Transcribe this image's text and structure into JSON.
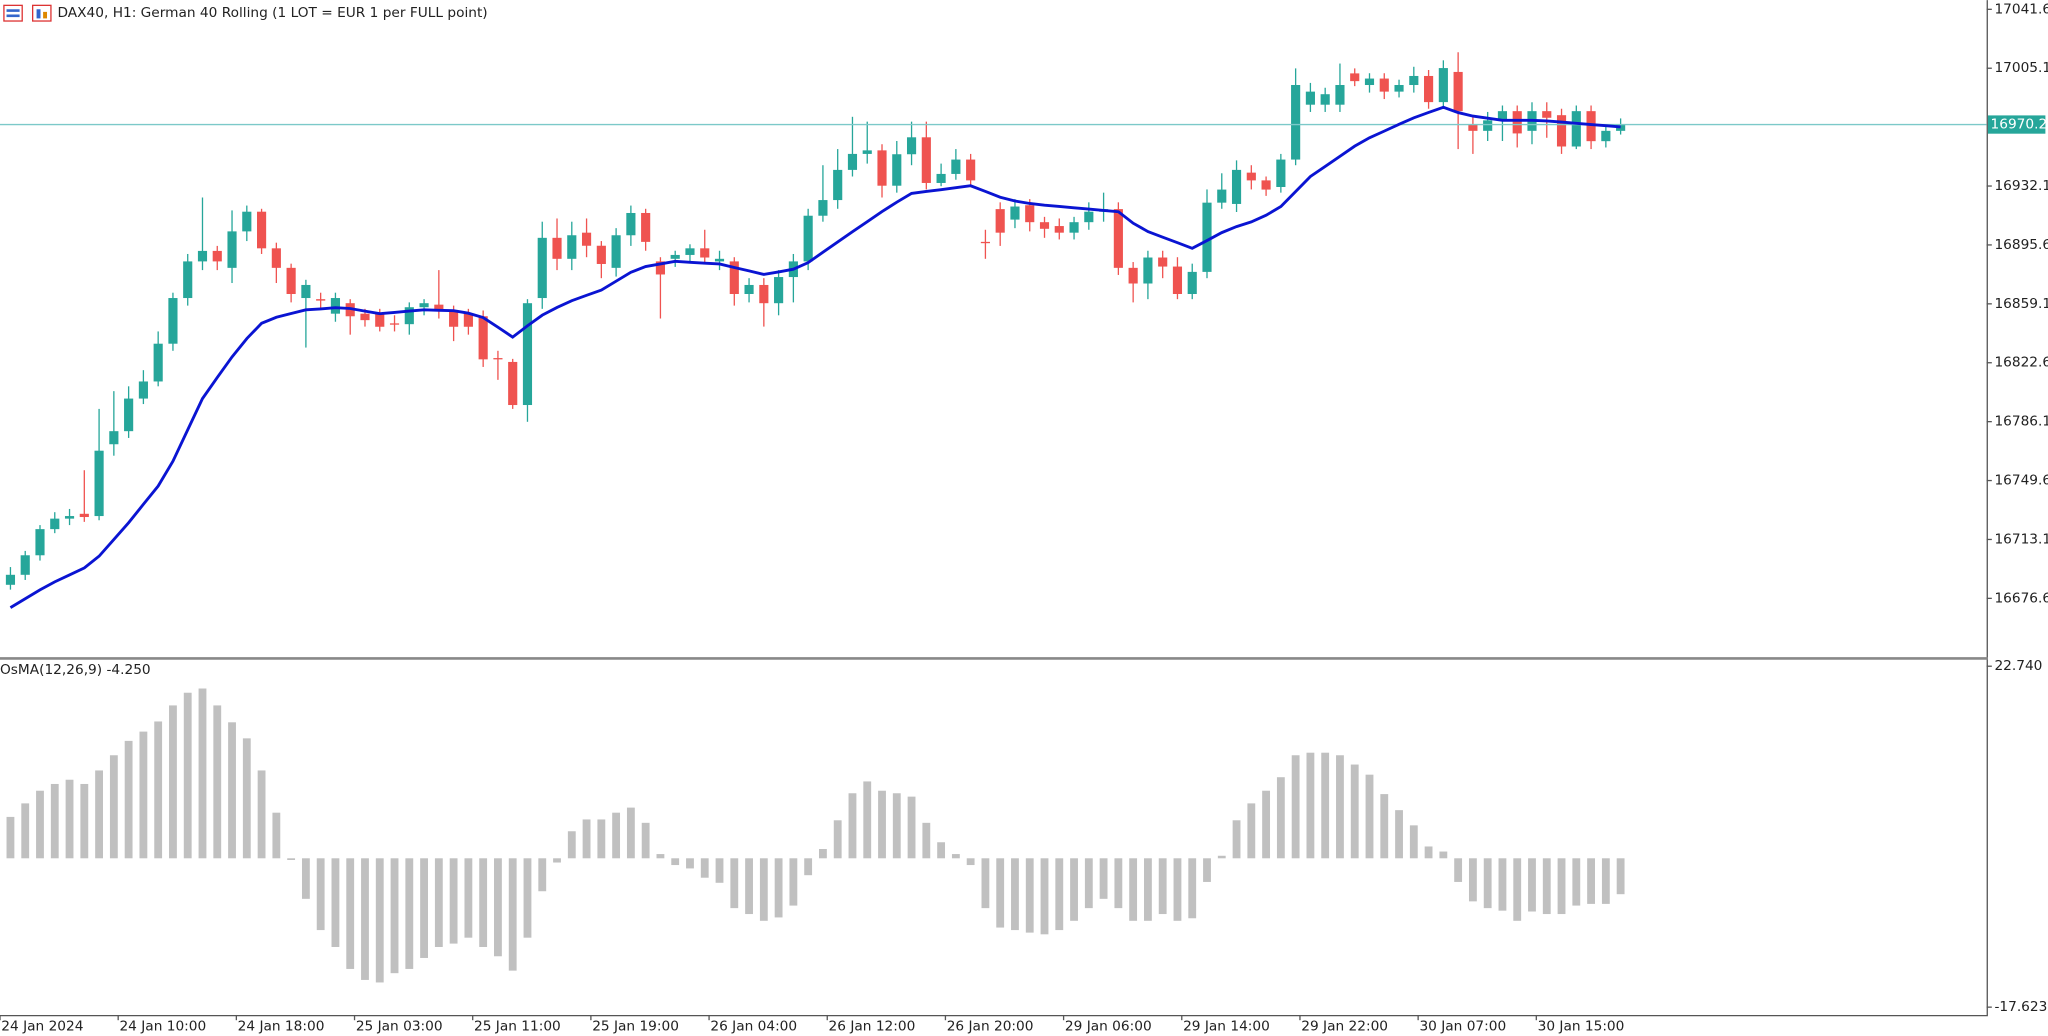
{
  "chart_data": [
    {
      "type": "candlestick",
      "title": "DAX40, H1:  German 40 Rolling (1 LOT = EUR 1 per FULL point)",
      "categories": [
        "24 Jan 2024",
        null,
        null,
        null,
        null,
        null,
        null,
        null,
        "24 Jan 10:00",
        null,
        null,
        null,
        null,
        null,
        null,
        null,
        "24 Jan 18:00",
        null,
        null,
        null,
        null,
        null,
        null,
        null,
        "25 Jan 03:00",
        null,
        null,
        null,
        null,
        null,
        null,
        null,
        "25 Jan 11:00",
        null,
        null,
        null,
        null,
        null,
        null,
        null,
        "25 Jan 19:00",
        null,
        null,
        null,
        null,
        null,
        null,
        null,
        "26 Jan 04:00",
        null,
        null,
        null,
        null,
        null,
        null,
        null,
        "26 Jan 12:00",
        null,
        null,
        null,
        null,
        null,
        null,
        null,
        "26 Jan 20:00",
        null,
        null,
        null,
        null,
        null,
        null,
        null,
        "29 Jan 06:00",
        null,
        null,
        null,
        null,
        null,
        null,
        null,
        "29 Jan 14:00",
        null,
        null,
        null,
        null,
        null,
        null,
        null,
        "29 Jan 22:00",
        null,
        null,
        null,
        null,
        null,
        null,
        null,
        "30 Jan 07:00",
        null,
        null,
        null,
        null,
        null,
        null,
        null,
        "30 Jan 15:00",
        null,
        null,
        null,
        null,
        null
      ],
      "open": [
        16685.0,
        16691.2,
        16703.3,
        16719.5,
        16726.0,
        16729.0,
        16727.6,
        16772.1,
        16780.2,
        16800.4,
        16811.0,
        16834.4,
        16862.7,
        16885.4,
        16891.9,
        16881.4,
        16904.0,
        16916.2,
        16893.5,
        16881.4,
        16862.7,
        16862.0,
        16853.0,
        16859.5,
        16853.0,
        16853.0,
        16847.0,
        16846.5,
        16857.0,
        16858.6,
        16854.6,
        16853.0,
        16851.4,
        16825.5,
        16823.1,
        16796.4,
        16862.7,
        16900.0,
        16887.0,
        16903.2,
        16895.1,
        16881.4,
        16901.6,
        16915.4,
        16885.4,
        16887.0,
        16889.4,
        16893.5,
        16885.4,
        16885.4,
        16865.2,
        16870.8,
        16859.5,
        16875.7,
        16885.4,
        16913.7,
        16923.4,
        16942.1,
        16952.0,
        16954.2,
        16932.3,
        16951.8,
        16962.3,
        16934.0,
        16939.6,
        16948.5,
        16897.5,
        16917.8,
        16911.3,
        16920.2,
        16909.7,
        16907.3,
        16903.2,
        16909.7,
        16916.2,
        16917.8,
        16881.4,
        16871.7,
        16887.8,
        16882.2,
        16865.2,
        16878.9,
        16921.8,
        16921.0,
        16940.4,
        16935.6,
        16931.5,
        16948.5,
        16982.5,
        16982.5,
        16982.5,
        17001.9,
        16994.7,
        16998.7,
        16990.6,
        16994.7,
        17000.3,
        16984.1,
        17002.8,
        16970.4,
        16966.3,
        16972.8,
        16978.5,
        16966.3,
        16978.5,
        16976.0,
        16956.6,
        16978.5,
        16959.9,
        16966.3
      ],
      "high": [
        16696,
        16706,
        16722,
        16730,
        16732,
        16756,
        16794,
        16805,
        16808,
        16818,
        16842,
        16866,
        16890,
        16925,
        16895,
        16917,
        16920,
        16918,
        16897,
        16884,
        16874,
        16866,
        16866,
        16862,
        16856,
        16856,
        16852,
        16860,
        16862,
        16880,
        16858,
        16856,
        16855,
        16830,
        16825,
        16862,
        16910,
        16912,
        16910,
        16912,
        16898,
        16906,
        16920,
        16918,
        16888,
        16892,
        16896,
        16905,
        16892,
        16888,
        16875,
        16875,
        16880,
        16890,
        16918,
        16945,
        16955,
        16975,
        16972,
        16958,
        16960,
        16972,
        16972,
        16946,
        16955,
        16952,
        16905,
        16922,
        16924,
        16924,
        16913,
        16912,
        16913,
        16922,
        16928,
        16922,
        16885,
        16892,
        16892,
        16888,
        16884,
        16930,
        16940,
        16948,
        16945,
        16938,
        16952,
        17005,
        16996,
        16993,
        17008,
        17005,
        17002,
        17002,
        16998,
        17006,
        17004,
        17010,
        17015,
        16976,
        16978,
        16982,
        16982,
        16984,
        16984,
        16980,
        16982,
        16982,
        16970,
        16974
      ],
      "low": [
        16682,
        16688,
        16700,
        16717,
        16722,
        16724,
        16725,
        16765,
        16776,
        16797,
        16808,
        16830,
        16858,
        16880,
        16880,
        16872,
        16898,
        16890,
        16872,
        16860,
        16832,
        16856,
        16848,
        16840,
        16845,
        16842,
        16842,
        16840,
        16852,
        16850,
        16836,
        16840,
        16820,
        16812,
        16794,
        16786,
        16856,
        16880,
        16880,
        16888,
        16875,
        16876,
        16895,
        16892,
        16850,
        16882,
        16885,
        16884,
        16880,
        16858,
        16860,
        16845,
        16852,
        16860,
        16880,
        16910,
        16918,
        16938,
        16946,
        16925,
        16928,
        16945,
        16930,
        16932,
        16936,
        16932,
        16887,
        16895,
        16906,
        16904,
        16900,
        16899,
        16899,
        16905,
        16910,
        16877,
        16860,
        16862,
        16875,
        16862,
        16862,
        16875,
        16918,
        16916,
        16930,
        16926,
        16928,
        16945,
        16978,
        16978,
        16978,
        16994,
        16990,
        16986,
        16987,
        16990,
        16980,
        16980,
        16955,
        16952,
        16960,
        16960,
        16956,
        16958,
        16962,
        16952,
        16955,
        16955,
        16956,
        16964
      ],
      "close": [
        16691.2,
        16703.3,
        16719.5,
        16726.0,
        16727.6,
        16727.0,
        16768.1,
        16780.2,
        16800.4,
        16811.0,
        16834.4,
        16862.7,
        16885.4,
        16891.9,
        16885.4,
        16904.0,
        16916.2,
        16893.5,
        16881.4,
        16865.2,
        16870.8,
        16861.1,
        16862.7,
        16851.4,
        16849.0,
        16844.9,
        16846.5,
        16857.0,
        16859.5,
        16855.4,
        16844.9,
        16844.9,
        16824.7,
        16824.7,
        16796.4,
        16859.5,
        16900.0,
        16887.0,
        16901.6,
        16895.1,
        16883.8,
        16901.6,
        16915.4,
        16897.5,
        16877.3,
        16889.4,
        16893.5,
        16887.8,
        16887.0,
        16865.2,
        16870.8,
        16859.5,
        16875.7,
        16885.4,
        16913.7,
        16923.4,
        16942.1,
        16952.0,
        16954.2,
        16932.3,
        16951.8,
        16962.3,
        16934.0,
        16939.6,
        16948.5,
        16935.6,
        16896.7,
        16903.2,
        16919.4,
        16909.7,
        16905.6,
        16903.2,
        16909.7,
        16916.2,
        16917.8,
        16881.4,
        16871.7,
        16887.8,
        16882.2,
        16865.2,
        16878.9,
        16921.8,
        16929.9,
        16942.1,
        16935.6,
        16929.9,
        16948.5,
        16994.7,
        16990.6,
        16989.0,
        16994.7,
        16997.1,
        16998.7,
        16990.6,
        16994.7,
        17000.3,
        16984.1,
        17005.2,
        16978.5,
        16966.3,
        16972.8,
        16978.5,
        16964.7,
        16978.5,
        16974.4,
        16956.6,
        16978.5,
        16959.9,
        16966.3,
        16970.2
      ],
      "up_color": "#26a69a",
      "down_color": "#ef5350",
      "ma": {
        "color": "#0a14d2",
        "values": [
          16670.9,
          16676.4,
          16681.9,
          16686.8,
          16691.1,
          16695.5,
          16702.8,
          16713.1,
          16723.5,
          16734.9,
          16746.2,
          16761.6,
          16781.0,
          16800.4,
          16813.4,
          16826.3,
          16837.6,
          16847.1,
          16850.8,
          16853.1,
          16855.4,
          16856.0,
          16856.7,
          16856.2,
          16854.6,
          16853.0,
          16853.8,
          16854.6,
          16855.4,
          16855.1,
          16854.8,
          16853.3,
          16850.6,
          16844.6,
          16838.5,
          16845.5,
          16852.1,
          16856.9,
          16861.1,
          16864.4,
          16867.6,
          16873.1,
          16878.6,
          16882.2,
          16883.8,
          16885.4,
          16884.9,
          16884.3,
          16883.8,
          16881.6,
          16879.5,
          16877.3,
          16878.9,
          16880.6,
          16884.6,
          16891.1,
          16897.5,
          16903.8,
          16910.0,
          16916.3,
          16922.1,
          16927.5,
          16928.7,
          16929.9,
          16931.1,
          16932.3,
          16928.7,
          16925.2,
          16922.8,
          16921.3,
          16920.2,
          16919.4,
          16918.6,
          16917.8,
          16917.0,
          16916.2,
          16909.1,
          16903.9,
          16900.4,
          16897.0,
          16893.5,
          16898.3,
          16903.2,
          16907.0,
          16909.9,
          16914.0,
          16919.4,
          16928.7,
          16938.0,
          16944.3,
          16950.5,
          16956.8,
          16962.0,
          16966.1,
          16970.3,
          16974.4,
          16977.7,
          16980.9,
          16977.6,
          16975.4,
          16974.1,
          16972.8,
          16972.8,
          16972.8,
          16972.4,
          16971.7,
          16971.0,
          16970.2,
          16969.5,
          16968.7
        ]
      },
      "last_price": 16970.2,
      "last_price_color": "#26a69a",
      "ylim": [
        16640.2,
        17047.3
      ],
      "yticks": [
        17041.6,
        17005.1,
        16932.1,
        16895.6,
        16859.1,
        16822.6,
        16786.1,
        16749.6,
        16713.1,
        16676.6
      ]
    },
    {
      "type": "bar",
      "title": "OsMA(12,26,9) -4.250",
      "color": "#c0c0c0",
      "values": [
        4.9,
        6.5,
        8.0,
        8.8,
        9.3,
        8.8,
        10.4,
        12.2,
        13.9,
        15.0,
        16.2,
        18.1,
        19.6,
        20.1,
        18.1,
        16.1,
        14.2,
        10.4,
        5.4,
        -0.2,
        -4.8,
        -8.5,
        -10.5,
        -13.1,
        -14.4,
        -14.7,
        -13.6,
        -13.1,
        -11.8,
        -10.5,
        -10.1,
        -9.4,
        -10.5,
        -11.6,
        -13.3,
        -9.4,
        -3.9,
        -0.5,
        3.2,
        4.6,
        4.6,
        5.4,
        6.0,
        4.2,
        0.5,
        -0.8,
        -1.2,
        -2.3,
        -2.9,
        -5.9,
        -6.6,
        -7.4,
        -7.0,
        -5.6,
        -2.0,
        1.1,
        4.5,
        7.7,
        9.1,
        8.0,
        7.7,
        7.3,
        4.2,
        1.9,
        0.5,
        -0.8,
        -5.9,
        -8.2,
        -8.5,
        -8.8,
        -9.0,
        -8.5,
        -7.4,
        -5.9,
        -4.8,
        -5.9,
        -7.4,
        -7.4,
        -6.6,
        -7.4,
        -7.1,
        -2.8,
        0.3,
        4.5,
        6.5,
        8.0,
        9.6,
        12.2,
        12.5,
        12.5,
        12.2,
        11.1,
        9.9,
        7.6,
        5.7,
        3.9,
        1.4,
        0.8,
        -2.8,
        -5.1,
        -5.9,
        -6.2,
        -7.4,
        -6.3,
        -6.6,
        -6.6,
        -5.6,
        -5.4,
        -5.4,
        -4.25
      ],
      "ylim": [
        -18.55,
        23.51
      ],
      "yticks": [
        {
          "value": 22.74,
          "label": "22.740"
        },
        -17.623
      ]
    }
  ]
}
